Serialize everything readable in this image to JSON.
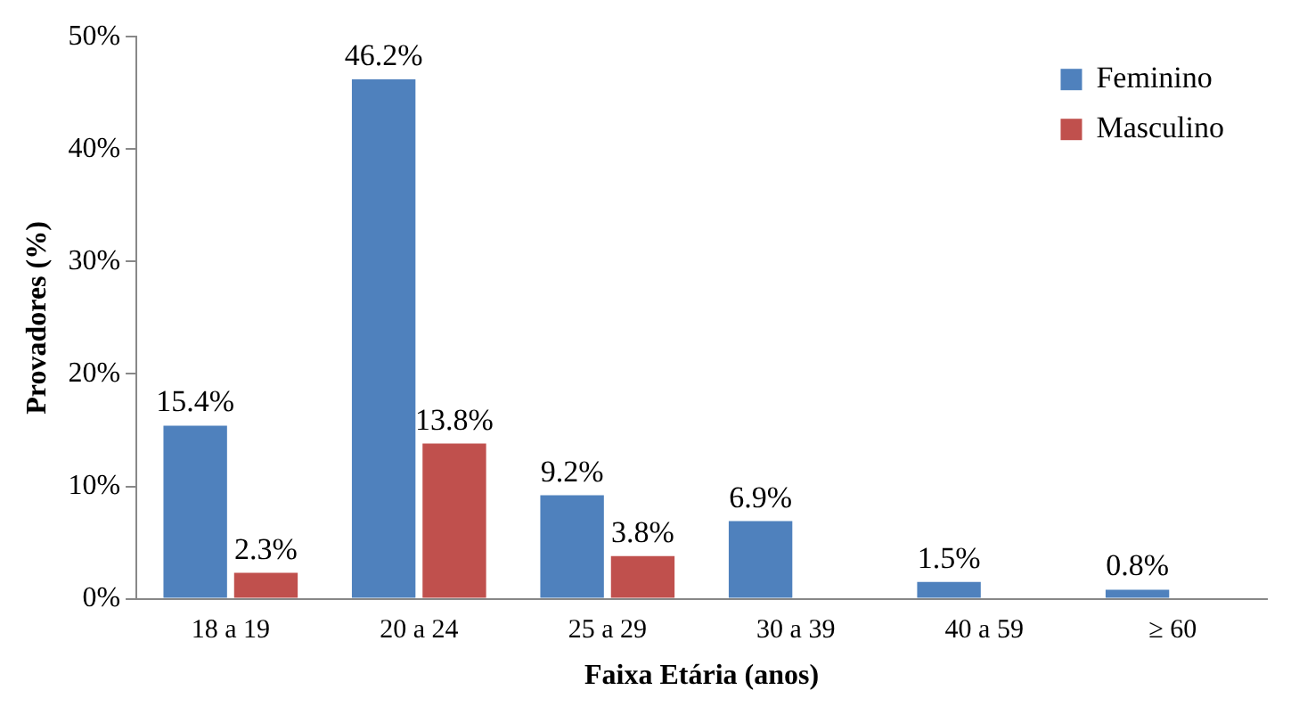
{
  "chart_data": {
    "type": "bar",
    "xlabel": "Faixa Etária (anos)",
    "ylabel": "Provadores (%)",
    "categories": [
      "18 a 19",
      "20 a 24",
      "25 a 29",
      "30 a 39",
      "40 a 59",
      "≥ 60"
    ],
    "series": [
      {
        "name": "Feminino",
        "color": "#4f81bd",
        "values": [
          15.4,
          46.2,
          9.2,
          6.9,
          1.5,
          0.8
        ],
        "value_labels": [
          "15.4%",
          "46.2%",
          "9.2%",
          "6.9%",
          "1.5%",
          "0.8%"
        ]
      },
      {
        "name": "Masculino",
        "color": "#c0504d",
        "values": [
          2.3,
          13.8,
          3.8,
          null,
          null,
          null
        ],
        "value_labels": [
          "2.3%",
          "13.8%",
          "3.8%",
          null,
          null,
          null
        ]
      }
    ],
    "ylim": [
      0,
      50
    ],
    "yticks": [
      {
        "value": 0,
        "label": "0%"
      },
      {
        "value": 10,
        "label": "10%"
      },
      {
        "value": 20,
        "label": "20%"
      },
      {
        "value": 30,
        "label": "30%"
      },
      {
        "value": 40,
        "label": "40%"
      },
      {
        "value": 50,
        "label": "50%"
      }
    ],
    "legend": "top right"
  }
}
